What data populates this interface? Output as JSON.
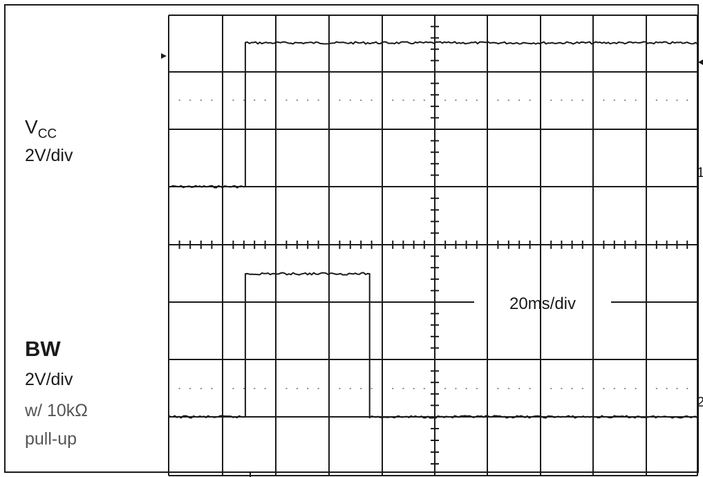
{
  "labels": {
    "vcc_name": "V",
    "vcc_sub": "CC",
    "vcc_scale": "2V/div",
    "bw_name": "BW",
    "bw_scale": "2V/div",
    "bw_resistor": "w/ 10kΩ",
    "bw_pullup": "pull-up",
    "time_scale": "20ms/div",
    "ch1_marker": "1",
    "ch2_marker": "2"
  },
  "colors": {
    "grid": "#1a1a1a",
    "trace": "#1a1a1a",
    "dots": "#8a8a8a",
    "background": "#ffffff"
  },
  "chart_data": {
    "type": "line",
    "title": "",
    "xlabel": "",
    "ylabel": "",
    "x_divisions": 10,
    "y_divisions": 8,
    "time_per_div": "20ms/div",
    "xlim": [
      0,
      200
    ],
    "series": [
      {
        "name": "VCC",
        "volts_per_div": "2V/div",
        "x": [
          0,
          29,
          29,
          200
        ],
        "y": [
          0,
          0,
          8,
          8
        ]
      },
      {
        "name": "BW",
        "volts_per_div": "2V/div",
        "x": [
          0,
          29,
          29,
          76,
          76,
          200
        ],
        "y": [
          0,
          0,
          8,
          8,
          0,
          0
        ]
      }
    ]
  }
}
